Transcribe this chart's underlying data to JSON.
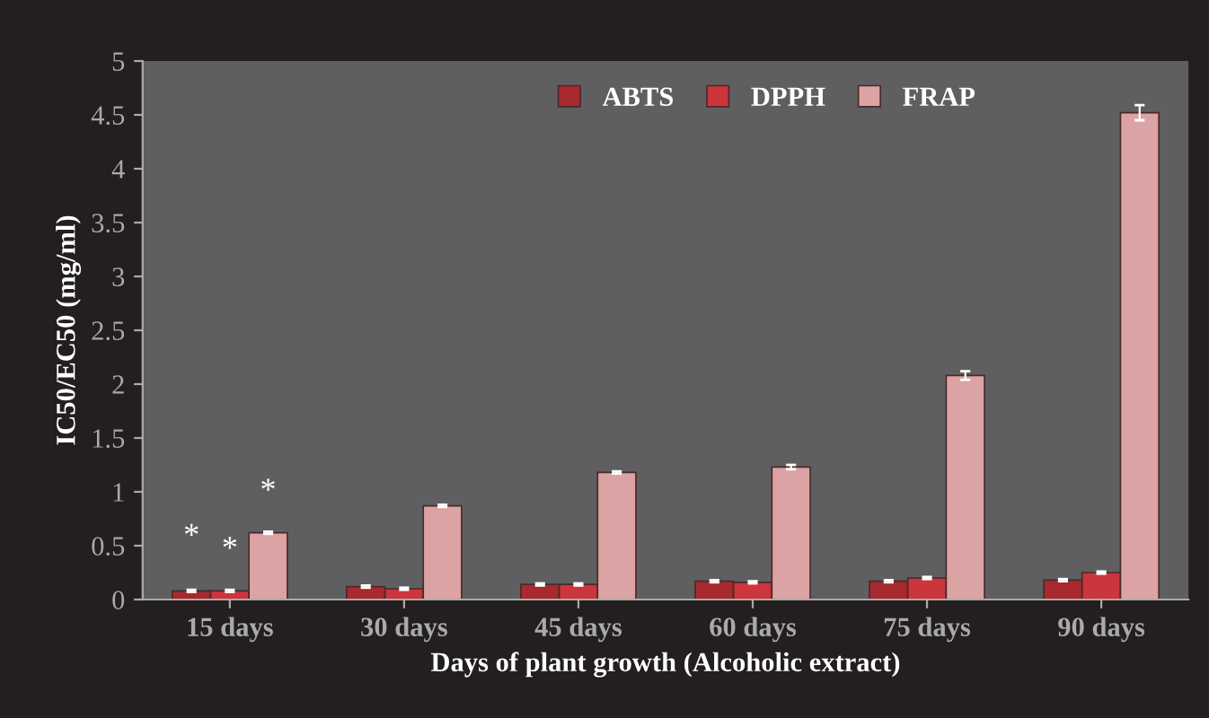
{
  "chart_data": {
    "type": "bar",
    "xlabel": "Days of plant growth (Alcoholic extract)",
    "ylabel": "IC50/EC50 (mg/ml)",
    "categories": [
      "15 days",
      "30 days",
      "45 days",
      "60 days",
      "75 days",
      "90 days"
    ],
    "series": [
      {
        "name": "ABTS",
        "color": "#a8292e",
        "values": [
          0.08,
          0.12,
          0.14,
          0.17,
          0.17,
          0.18
        ],
        "errors": [
          0.01,
          0.01,
          0.01,
          0.01,
          0.01,
          0.01
        ]
      },
      {
        "name": "DPPH",
        "color": "#cc353b",
        "values": [
          0.08,
          0.1,
          0.14,
          0.16,
          0.2,
          0.25
        ],
        "errors": [
          0.01,
          0.01,
          0.01,
          0.01,
          0.01,
          0.01
        ]
      },
      {
        "name": "FRAP",
        "color": "#dba3a4",
        "values": [
          0.62,
          0.87,
          1.18,
          1.23,
          2.08,
          4.52
        ],
        "errors": [
          0.01,
          0.01,
          0.01,
          0.02,
          0.04,
          0.07
        ]
      }
    ],
    "ylim": [
      0,
      5
    ],
    "yticks": [
      0,
      0.5,
      1,
      1.5,
      2,
      2.5,
      3,
      3.5,
      4,
      4.5,
      5
    ],
    "grid": false,
    "legend": "top right",
    "annotations": [
      "*",
      "*",
      "*"
    ]
  }
}
